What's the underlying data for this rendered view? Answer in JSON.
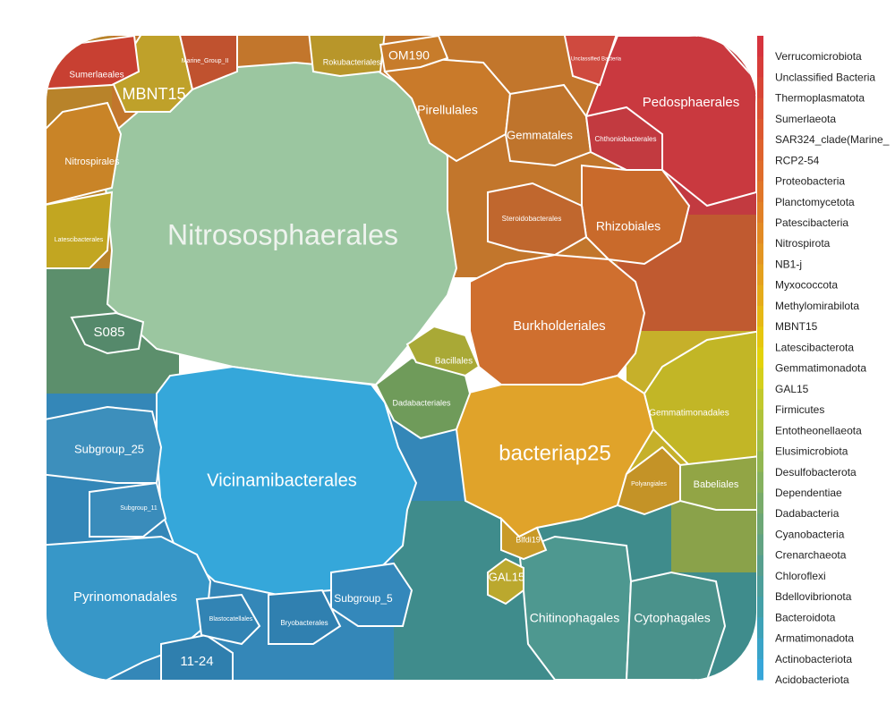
{
  "chart_data": {
    "type": "voronoi-treemap",
    "cells": [
      {
        "label": "Nitrososphaerales",
        "color": "#9bc6a0"
      },
      {
        "label": "Vicinamibacterales",
        "color": "#35a7da"
      },
      {
        "label": "Burkholderiales",
        "color": "#cf6f2f"
      },
      {
        "label": "bacteriap25",
        "color": "#e0a32a"
      },
      {
        "label": "Pedosphaerales",
        "color": "#c9393f"
      },
      {
        "label": "Pirellulales",
        "color": "#c97a2a"
      },
      {
        "label": "Gemmatales",
        "color": "#bf742c"
      },
      {
        "label": "Rhizobiales",
        "color": "#c96a2b"
      },
      {
        "label": "Steroidobacterales",
        "color": "#c0672e"
      },
      {
        "label": "Chitinophagales",
        "color": "#4e9890"
      },
      {
        "label": "Cytophagales",
        "color": "#4a928b"
      },
      {
        "label": "Pyrinomonadales",
        "color": "#3797c8"
      },
      {
        "label": "Subgroup_25",
        "color": "#3d8fbc"
      },
      {
        "label": "Nitrospirales",
        "color": "#c98427"
      },
      {
        "label": "Latescibacterales",
        "color": "#c2a621"
      },
      {
        "label": "Gemmatimonadales",
        "color": "#c2b626"
      },
      {
        "label": "Babeliales",
        "color": "#92a545"
      },
      {
        "label": "Dadabacteriales",
        "color": "#6f9b5a"
      },
      {
        "label": "MBNT15",
        "color": "#bfa12a"
      },
      {
        "label": "Rokubacteriales",
        "color": "#b8962a"
      },
      {
        "label": "GAL15",
        "color": "#bba82e"
      },
      {
        "label": "S085",
        "color": "#55896b"
      },
      {
        "label": "11-24",
        "color": "#2f7fae"
      },
      {
        "label": "Subgroup_5",
        "color": "#3488bb"
      },
      {
        "label": "Bacillales",
        "color": "#a9a936"
      },
      {
        "label": "Bryobacterales",
        "color": "#3080b0"
      },
      {
        "label": "Unclassified Bacteria",
        "color": "#cf4a3f"
      },
      {
        "label": "Sumerlaeales",
        "color": "#c84032"
      },
      {
        "label": "Marine_Group_II",
        "color": "#c0522f"
      },
      {
        "label": "OM190",
        "color": "#c77c2b"
      },
      {
        "label": "Blastocatellales",
        "color": "#3284b4"
      },
      {
        "label": "Chthoniobacterales",
        "color": "#c23a40"
      },
      {
        "label": "Polyangiales",
        "color": "#c49327"
      },
      {
        "label": "Blfdi19",
        "color": "#c99a28"
      },
      {
        "label": "Subgroup_11",
        "color": "#3a8cbb"
      }
    ],
    "legend": [
      {
        "name": "Verrucomicrobiota",
        "color": "#d6343e"
      },
      {
        "name": "Unclassified Bacteria",
        "color": "#d73c3a"
      },
      {
        "name": "Thermoplasmatota",
        "color": "#d84536"
      },
      {
        "name": "Sumerlaeota",
        "color": "#da4f33"
      },
      {
        "name": "SAR324_clade(Marine_",
        "color": "#dc5830"
      },
      {
        "name": "RCP2-54",
        "color": "#de622d"
      },
      {
        "name": "Proteobacteria",
        "color": "#df6c2b"
      },
      {
        "name": "Planctomycetota",
        "color": "#e07629"
      },
      {
        "name": "Patescibacteria",
        "color": "#e18027"
      },
      {
        "name": "Nitrospirota",
        "color": "#e28a24"
      },
      {
        "name": "NB1-j",
        "color": "#e39522"
      },
      {
        "name": "Myxococcota",
        "color": "#e4a01e"
      },
      {
        "name": "Methylomirabilota",
        "color": "#e5ab1a"
      },
      {
        "name": "MBNT15",
        "color": "#e6b815"
      },
      {
        "name": "Latescibacterota",
        "color": "#e6c60e"
      },
      {
        "name": "Gemmatimonadota",
        "color": "#e3d20a"
      },
      {
        "name": "GAL15",
        "color": "#d4cf1c"
      },
      {
        "name": "Firmicutes",
        "color": "#c2c92c"
      },
      {
        "name": "Entotheonellaeota",
        "color": "#b0c33a"
      },
      {
        "name": "Elusimicrobiota",
        "color": "#a0bd46"
      },
      {
        "name": "Desulfobacterota",
        "color": "#92b752"
      },
      {
        "name": "Dependentiae",
        "color": "#85b15e"
      },
      {
        "name": "Dadabacteria",
        "color": "#79ab6a"
      },
      {
        "name": "Cyanobacteria",
        "color": "#6da776"
      },
      {
        "name": "Crenarchaeota",
        "color": "#62a382"
      },
      {
        "name": "Chloroflexi",
        "color": "#579f8e"
      },
      {
        "name": "Bdellovibrionota",
        "color": "#4d9f9b"
      },
      {
        "name": "Bacteroidota",
        "color": "#44a0a8"
      },
      {
        "name": "Armatimonadota",
        "color": "#3ea2b8"
      },
      {
        "name": "Actinobacteriota",
        "color": "#3aa4c8"
      },
      {
        "name": "Acidobacteriota",
        "color": "#37a6d9"
      }
    ]
  }
}
